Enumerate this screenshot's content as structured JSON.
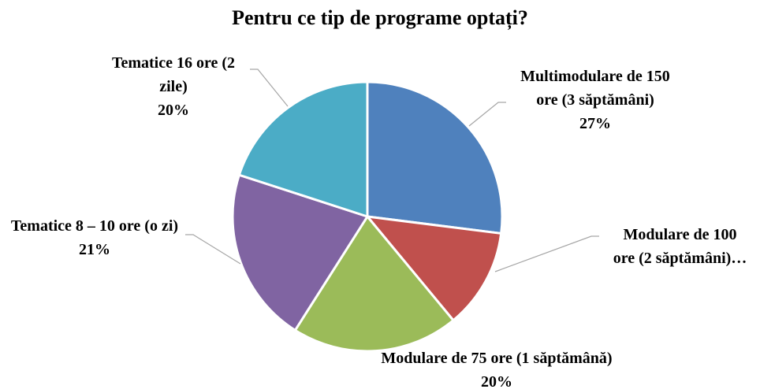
{
  "chart_data": {
    "type": "pie",
    "title": "Pentru ce tip de programe optați?",
    "categories": [
      "Multimodulare de 150 ore (3 săptămâni)",
      "Modulare de 100 ore (2 săptămâni)…",
      "Modulare de 75 ore (1 săptămână)",
      "Tematice 8 – 10 ore (o zi)",
      "Tematice 16 ore (2 zile)"
    ],
    "values": [
      27,
      12,
      20,
      21,
      20
    ],
    "value_labels": [
      "27%",
      null,
      "20%",
      "21%",
      "20%"
    ],
    "colors": [
      "#4f81bd",
      "#c0504d",
      "#9bbb59",
      "#8064a2",
      "#4bacc6"
    ]
  }
}
